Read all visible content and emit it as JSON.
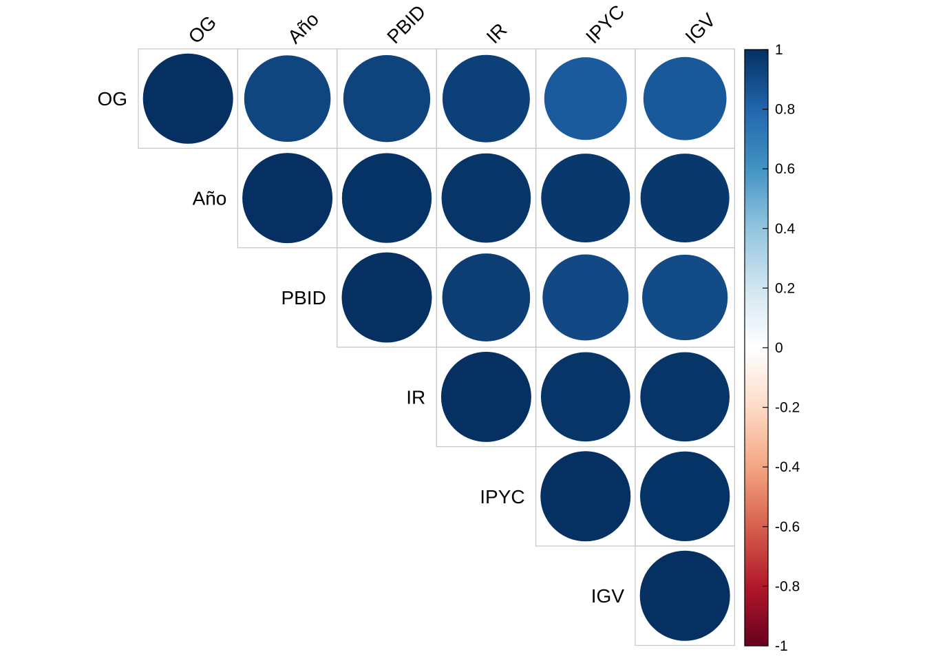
{
  "chart_data": {
    "type": "heatmap",
    "subtype": "correlation-circle-upper",
    "variables": [
      "OG",
      "Año",
      "PBID",
      "IR",
      "IPYC",
      "IGV"
    ],
    "matrix": [
      [
        1.0,
        0.92,
        0.93,
        0.94,
        0.84,
        0.85
      ],
      [
        null,
        1.0,
        0.99,
        0.98,
        0.97,
        0.97
      ],
      [
        null,
        null,
        1.0,
        0.95,
        0.91,
        0.9
      ],
      [
        null,
        null,
        null,
        1.0,
        0.98,
        0.98
      ],
      [
        null,
        null,
        null,
        null,
        1.0,
        0.99
      ],
      [
        null,
        null,
        null,
        null,
        null,
        1.0
      ]
    ],
    "colorbar": {
      "range": [
        -1,
        1
      ],
      "ticks": [
        "1",
        "0.8",
        "0.6",
        "0.4",
        "0.2",
        "0",
        "-0.2",
        "-0.4",
        "-0.6",
        "-0.8",
        "-1"
      ],
      "tick_values": [
        1,
        0.8,
        0.6,
        0.4,
        0.2,
        0,
        -0.2,
        -0.4,
        -0.6,
        -0.8,
        -1
      ],
      "colors": [
        "#67001F",
        "#B2182B",
        "#D6604D",
        "#F4A582",
        "#FDDBC7",
        "#FFFFFF",
        "#D1E5F0",
        "#92C5DE",
        "#4393C3",
        "#2166AC",
        "#053061"
      ]
    },
    "grid": true,
    "legend_position": "right"
  }
}
